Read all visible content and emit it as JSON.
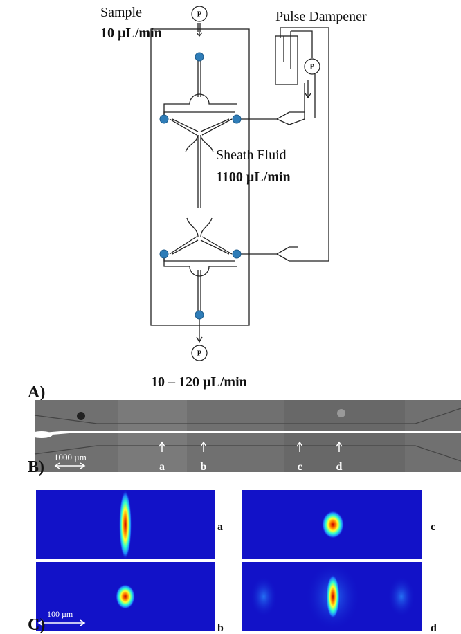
{
  "panel_a": {
    "label": "A)",
    "sample": {
      "name": "Sample",
      "rate": "10 µL/min"
    },
    "pumps": [
      "P",
      "P",
      "P"
    ],
    "pulse_dampener": "Pulse Dampener",
    "sheath": {
      "name": "Sheath Fluid",
      "rate": "1100 µL/min"
    },
    "outlet_rate": "10 – 120 µL/min"
  },
  "panel_b": {
    "label": "B)",
    "scale_bar": "1000 µm",
    "markers": [
      "a",
      "b",
      "c",
      "d"
    ]
  },
  "panel_c": {
    "label": "C)",
    "scale_bar": "100 µm",
    "plots": [
      "a",
      "c",
      "b",
      "d"
    ]
  }
}
